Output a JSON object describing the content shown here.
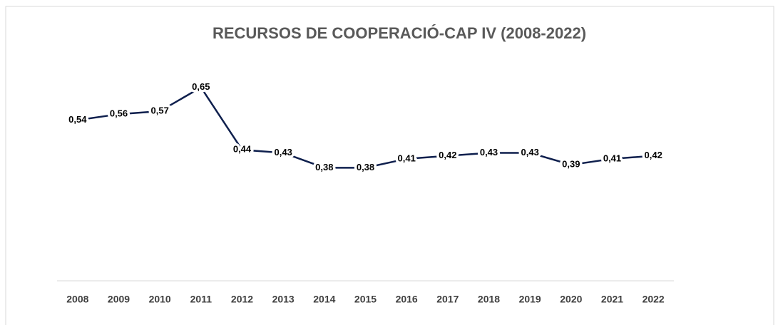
{
  "chart_data": {
    "type": "line",
    "title": "RECURSOS DE COOPERACIÓ-CAP IV (2008-2022)",
    "categories": [
      "2008",
      "2009",
      "2010",
      "2011",
      "2012",
      "2013",
      "2014",
      "2015",
      "2016",
      "2017",
      "2018",
      "2019",
      "2020",
      "2021",
      "2022"
    ],
    "values": [
      0.54,
      0.56,
      0.57,
      0.65,
      0.44,
      0.43,
      0.38,
      0.38,
      0.41,
      0.42,
      0.43,
      0.43,
      0.39,
      0.41,
      0.42
    ],
    "value_labels": [
      "0,54",
      "0,56",
      "0,57",
      "0,65",
      "0,44",
      "0,43",
      "0,38",
      "0,38",
      "0,41",
      "0,42",
      "0,43",
      "0,43",
      "0,39",
      "0,41",
      "0,42"
    ],
    "color": "#0e1f4d",
    "ylim": [
      0,
      0.8
    ]
  }
}
